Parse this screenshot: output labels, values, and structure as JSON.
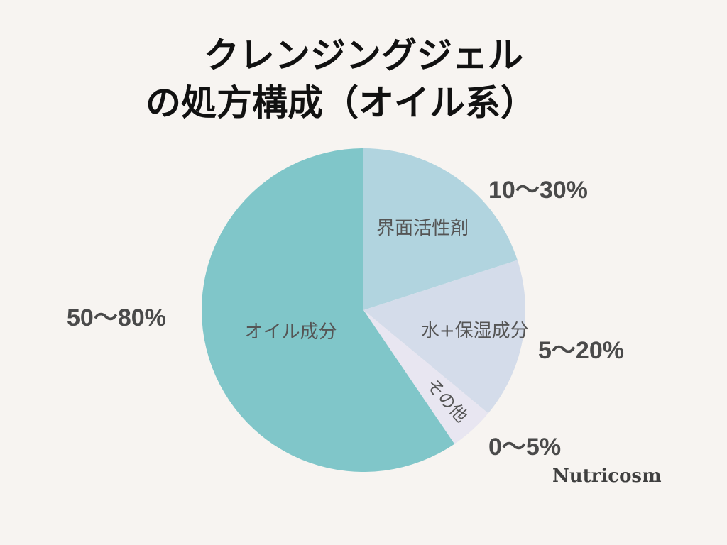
{
  "title_lines": [
    "クレンジングジェル",
    "の処方構成（オイル系）"
  ],
  "brand": "Nutricosm",
  "chart_data": {
    "type": "pie",
    "start_angle_deg": 0,
    "direction": "clockwise",
    "slices": [
      {
        "name": "界面活性剤",
        "range": "10〜30%",
        "value": 20,
        "color": "#b1d4df"
      },
      {
        "name": "水+保湿成分",
        "range": "5〜20%",
        "value": 16,
        "color": "#d4dcea"
      },
      {
        "name": "その他",
        "range": "0〜5%",
        "value": 4.5,
        "color": "#e8e6f1"
      },
      {
        "name": "オイル成分",
        "range": "50〜80%",
        "value": 59.5,
        "color": "#80c6c9"
      }
    ]
  }
}
